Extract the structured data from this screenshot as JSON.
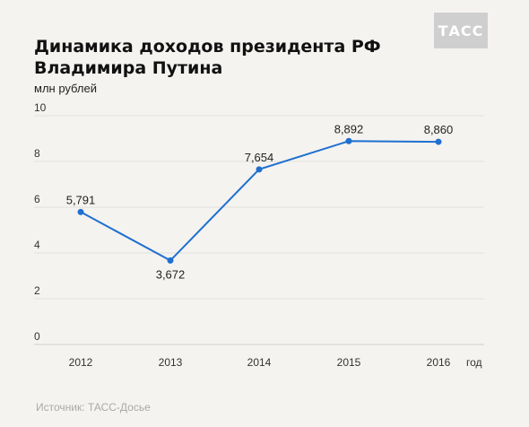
{
  "brand": {
    "logo_text": "ТАСС"
  },
  "chart_data": {
    "type": "line",
    "title": "Динамика доходов президента РФ Владимира Путина",
    "ylabel": "млн рублей",
    "xlabel": "год",
    "categories": [
      "2012",
      "2013",
      "2014",
      "2015",
      "2016"
    ],
    "series": [
      {
        "values": [
          5.791,
          3.672,
          7.654,
          8.892,
          8.86
        ]
      }
    ],
    "data_labels": [
      "5,791",
      "3,672",
      "7,654",
      "8,892",
      "8,860"
    ],
    "yticks": [
      0,
      2,
      4,
      6,
      8,
      10
    ],
    "ylim": [
      0,
      10
    ],
    "grid": true,
    "line_color": "#1f6fd1"
  },
  "source": "Источник: ТАСС-Досье"
}
